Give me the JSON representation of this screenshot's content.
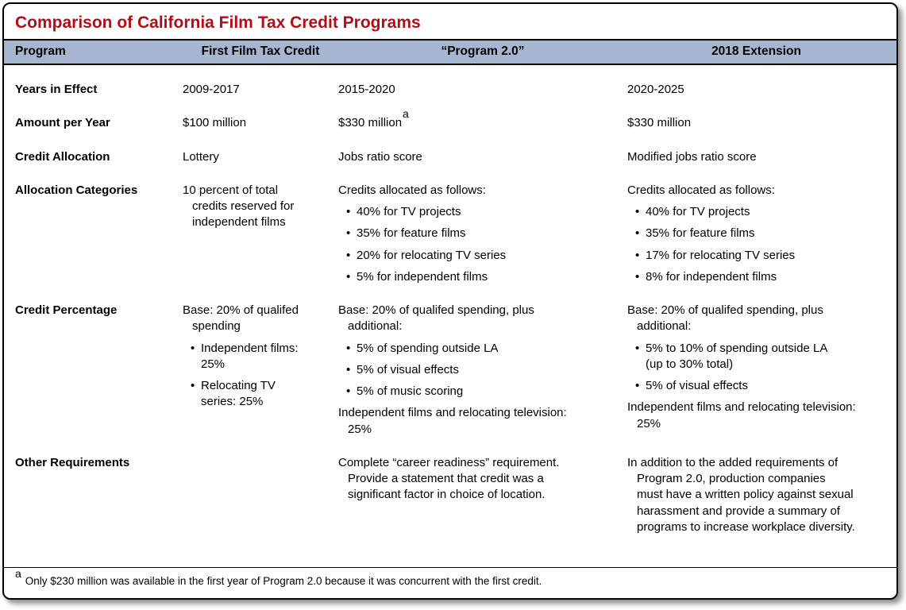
{
  "colors": {
    "title_red": "#b00f19",
    "header_blue": "#a6b6d1"
  },
  "title": "Comparison of California Film Tax Credit Programs",
  "columns": [
    "Program",
    "First Film Tax Credit",
    "“Program 2.0”",
    "2018 Extension"
  ],
  "rows": [
    {
      "label": "Years in Effect",
      "cells": [
        [
          {
            "t": "p",
            "text": "2009-2017"
          }
        ],
        [
          {
            "t": "p",
            "text": "2015-2020"
          }
        ],
        [
          {
            "t": "p",
            "text": "2020-2025"
          }
        ]
      ]
    },
    {
      "label": "Amount per Year",
      "cells": [
        [
          {
            "t": "p",
            "text": "$100 million"
          }
        ],
        [
          {
            "t": "p",
            "text": "$330 million",
            "sup": "a"
          }
        ],
        [
          {
            "t": "p",
            "text": "$330 million"
          }
        ]
      ]
    },
    {
      "label": "Credit Allocation",
      "cells": [
        [
          {
            "t": "p",
            "text": "Lottery"
          }
        ],
        [
          {
            "t": "p",
            "text": "Jobs ratio score"
          }
        ],
        [
          {
            "t": "p",
            "text": "Modified jobs ratio score"
          }
        ]
      ]
    },
    {
      "label": "Allocation Categories",
      "cells": [
        [
          {
            "t": "p",
            "hang": true,
            "text": "10 percent of total\ncredits reserved for\nindependent films"
          }
        ],
        [
          {
            "t": "p",
            "text": "Credits allocated as follows:"
          },
          {
            "t": "b",
            "text": "40% for TV projects"
          },
          {
            "t": "b",
            "text": "35% for feature films"
          },
          {
            "t": "b",
            "text": "20% for relocating TV series"
          },
          {
            "t": "b",
            "text": "5% for independent films"
          }
        ],
        [
          {
            "t": "p",
            "text": "Credits allocated as follows:"
          },
          {
            "t": "b",
            "text": "40% for TV projects"
          },
          {
            "t": "b",
            "text": "35% for feature films"
          },
          {
            "t": "b",
            "text": "17% for relocating TV series"
          },
          {
            "t": "b",
            "text": "8% for independent films"
          }
        ]
      ]
    },
    {
      "label": "Credit Percentage",
      "cells": [
        [
          {
            "t": "p",
            "hang": true,
            "text": "Base: 20% of qualifed\nspending"
          },
          {
            "t": "b",
            "text": "Independent films:\n25%"
          },
          {
            "t": "b",
            "text": "Relocating TV\nseries: 25%"
          }
        ],
        [
          {
            "t": "p",
            "hang": true,
            "text": "Base: 20% of qualifed spending, plus\nadditional:"
          },
          {
            "t": "b",
            "text": "5% of spending outside LA"
          },
          {
            "t": "b",
            "text": "5% of visual effects"
          },
          {
            "t": "b",
            "text": "5% of music scoring"
          },
          {
            "t": "p",
            "hang": true,
            "text": "Independent films and relocating television:\n25%"
          }
        ],
        [
          {
            "t": "p",
            "hang": true,
            "text": "Base: 20% of qualifed spending, plus\nadditional:"
          },
          {
            "t": "b",
            "text": "5% to 10% of spending outside LA\n(up to 30% total)"
          },
          {
            "t": "b",
            "text": "5% of visual effects"
          },
          {
            "t": "p",
            "hang": true,
            "text": "Independent films and relocating television:\n25%"
          }
        ]
      ]
    },
    {
      "label": "Other Requirements",
      "cells": [
        [],
        [
          {
            "t": "p",
            "hang": true,
            "text": "Complete “career readiness” requirement.\nProvide a statement that credit was a\nsignificant factor in choice of location."
          }
        ],
        [
          {
            "t": "p",
            "hang": true,
            "text": "In addition to the added requirements of\nProgram 2.0, production companies\nmust have a written policy against sexual\nharassment and provide a summary of\nprograms to increase workplace diversity."
          }
        ]
      ]
    }
  ],
  "footnote": {
    "marker": "a",
    "text": "Only $230 million was available in the first year of Program 2.0 because it was concurrent with the first credit."
  }
}
